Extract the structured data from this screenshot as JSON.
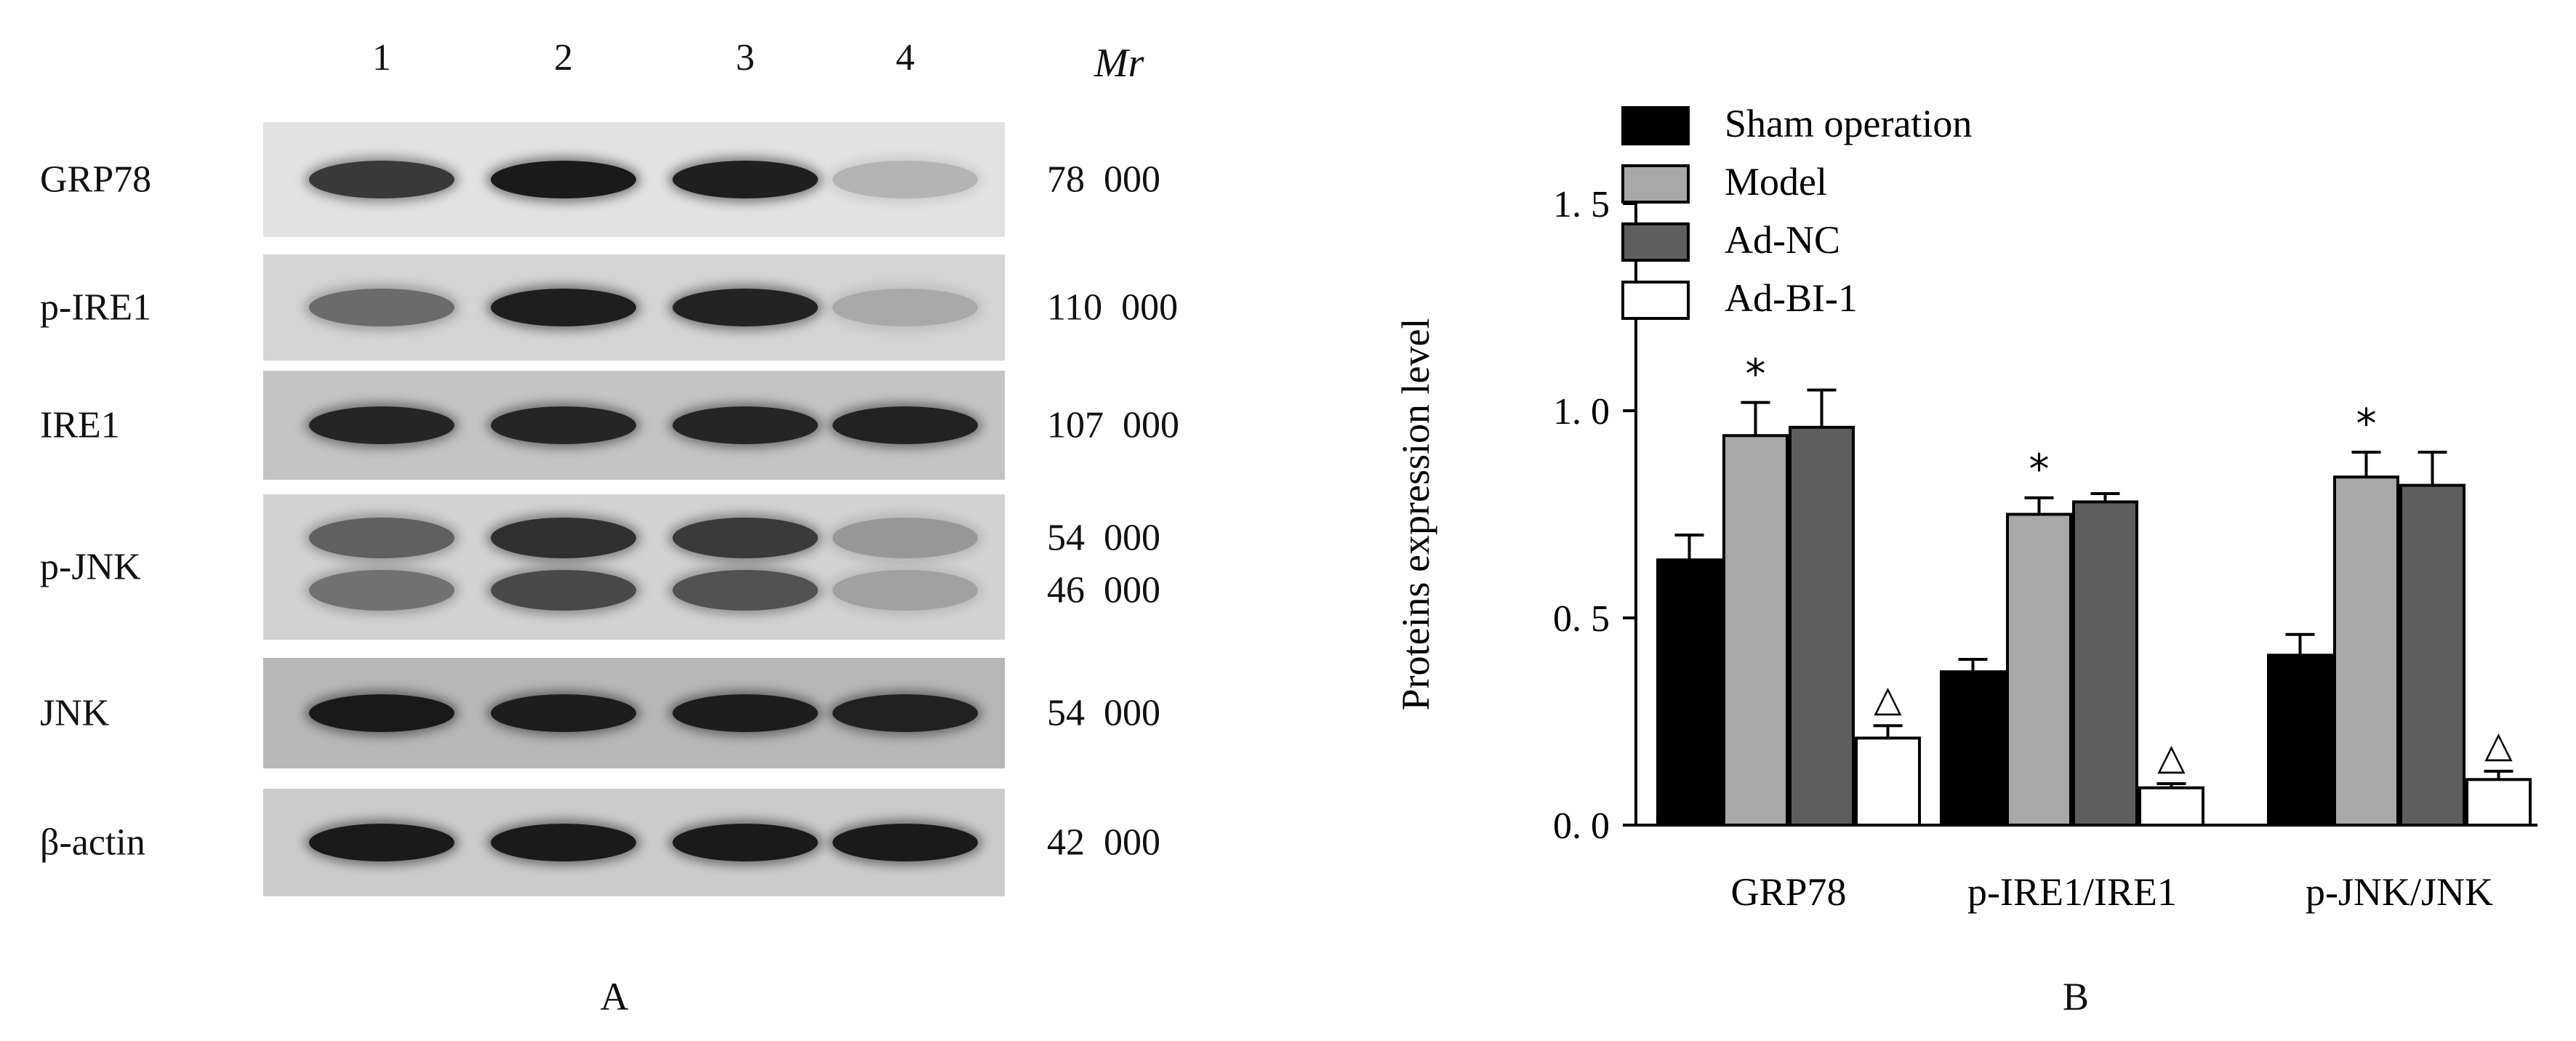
{
  "panel_a": {
    "lanes": [
      "1",
      "2",
      "3",
      "4"
    ],
    "mr_header": "Mr",
    "blots": [
      {
        "label": "GRP78",
        "mw": [
          "78  000"
        ],
        "bg": "#e2e2e2",
        "intensity": [
          0.82,
          0.97,
          0.95,
          0.22
        ]
      },
      {
        "label": "p-IRE1",
        "mw": [
          "110  000"
        ],
        "bg": "#d4d4d4",
        "intensity": [
          0.55,
          0.95,
          0.92,
          0.22
        ]
      },
      {
        "label": "IRE1",
        "mw": [
          "107  000"
        ],
        "bg": "#c4c4c4",
        "intensity": [
          0.9,
          0.9,
          0.9,
          0.92
        ]
      },
      {
        "label": "p-JNK",
        "mw": [
          "54  000",
          "46  000"
        ],
        "bg": "#d2d2d2",
        "intensity": [
          0.6,
          0.85,
          0.8,
          0.3
        ]
      },
      {
        "label": "JNK",
        "mw": [
          "54  000"
        ],
        "bg": "#b7b7b7",
        "intensity": [
          0.97,
          0.95,
          0.95,
          0.92
        ]
      },
      {
        "label": "β-actin",
        "mw": [
          "42  000"
        ],
        "bg": "#cbcbcb",
        "intensity": [
          0.97,
          0.97,
          0.97,
          0.97
        ]
      }
    ],
    "letter": "A"
  },
  "chart_data": {
    "type": "bar",
    "ylabel": "Proteins expression level",
    "ylim": [
      0,
      1.5
    ],
    "yticks": [
      "0. 0",
      "0. 5",
      "1. 0",
      "1. 5"
    ],
    "categories": [
      "GRP78",
      "p-IRE1/IRE1",
      "p-JNK/JNK"
    ],
    "series": [
      {
        "name": "Sham operation",
        "color": "#000000",
        "values": [
          0.64,
          0.37,
          0.41
        ],
        "errors": [
          0.06,
          0.03,
          0.05
        ],
        "marks": [
          "",
          "",
          ""
        ]
      },
      {
        "name": "Model",
        "color": "#a8a8a8",
        "values": [
          0.94,
          0.75,
          0.84
        ],
        "errors": [
          0.08,
          0.04,
          0.06
        ],
        "marks": [
          "*",
          "*",
          "*"
        ]
      },
      {
        "name": "Ad-NC",
        "color": "#5e5e5e",
        "values": [
          0.96,
          0.78,
          0.82
        ],
        "errors": [
          0.09,
          0.02,
          0.08
        ],
        "marks": [
          "",
          "",
          ""
        ]
      },
      {
        "name": "Ad-BI-1",
        "color": "#ffffff",
        "values": [
          0.21,
          0.09,
          0.11
        ],
        "errors": [
          0.03,
          0.01,
          0.02
        ],
        "marks": [
          "△",
          "△",
          "△"
        ]
      }
    ],
    "legend": "top-left",
    "grid": false,
    "letter": "B"
  }
}
